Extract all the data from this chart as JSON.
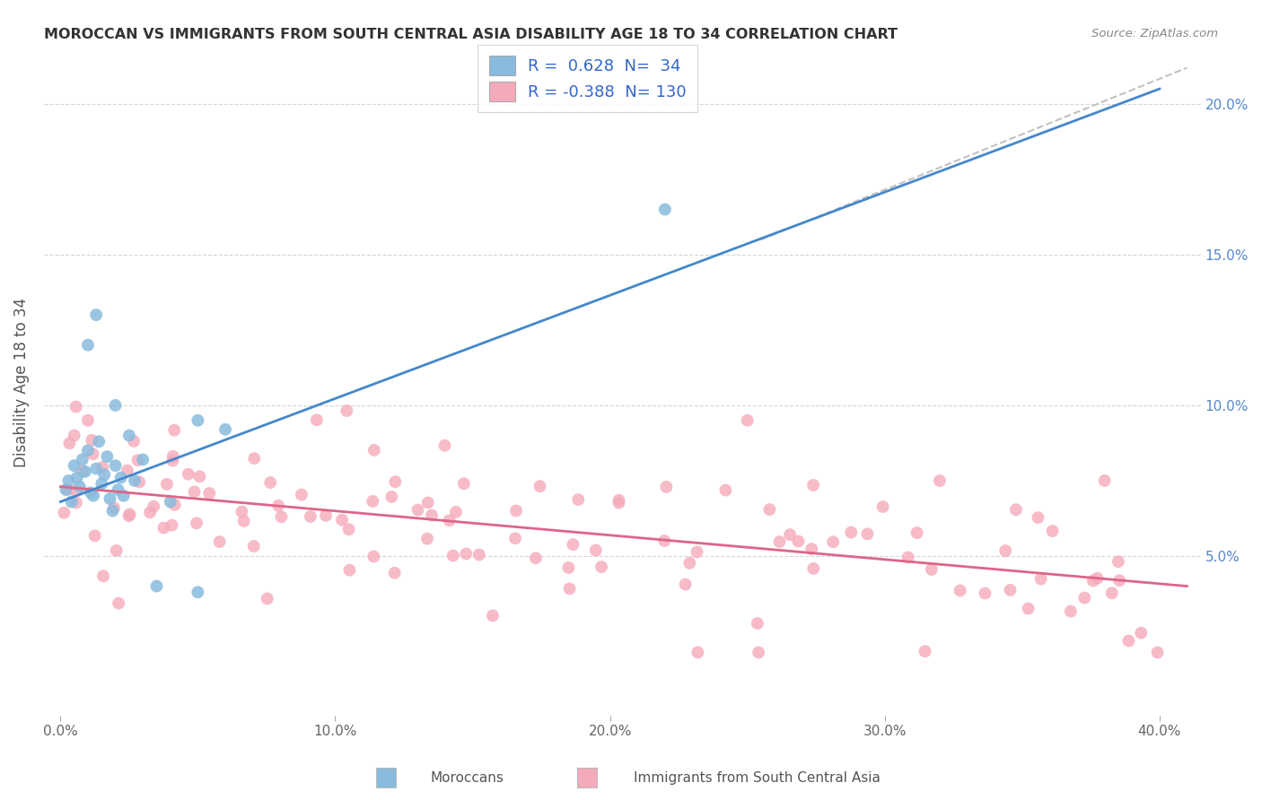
{
  "title": "MOROCCAN VS IMMIGRANTS FROM SOUTH CENTRAL ASIA DISABILITY AGE 18 TO 34 CORRELATION CHART",
  "source": "Source: ZipAtlas.com",
  "ylabel": "Disability Age 18 to 34",
  "xlim": [
    0.0,
    0.41
  ],
  "ylim": [
    0.0,
    0.215
  ],
  "xtick_vals": [
    0.0,
    0.1,
    0.2,
    0.3,
    0.4
  ],
  "xtick_labels": [
    "0.0%",
    "10.0%",
    "20.0%",
    "30.0%",
    "40.0%"
  ],
  "ytick_vals": [
    0.05,
    0.1,
    0.15,
    0.2
  ],
  "ytick_labels": [
    "5.0%",
    "10.0%",
    "15.0%",
    "20.0%"
  ],
  "blue_R": 0.628,
  "blue_N": 34,
  "pink_R": -0.388,
  "pink_N": 130,
  "blue_color": "#88bbdd",
  "pink_color": "#f5aabb",
  "blue_line_color": "#4488cc",
  "pink_line_color": "#dd6688",
  "dashed_line_color": "#bbbbbb",
  "legend_label_blue": "Moroccans",
  "legend_label_pink": "Immigrants from South Central Asia",
  "blue_line_x0": 0.0,
  "blue_line_y0": 0.068,
  "blue_line_x1": 0.4,
  "blue_line_y1": 0.205,
  "pink_line_x0": 0.0,
  "pink_line_y0": 0.073,
  "pink_line_x1": 0.41,
  "pink_line_y1": 0.04,
  "dash_line_x0": 0.255,
  "dash_line_y0": 0.155,
  "dash_line_x1": 0.41,
  "dash_line_y1": 0.212
}
